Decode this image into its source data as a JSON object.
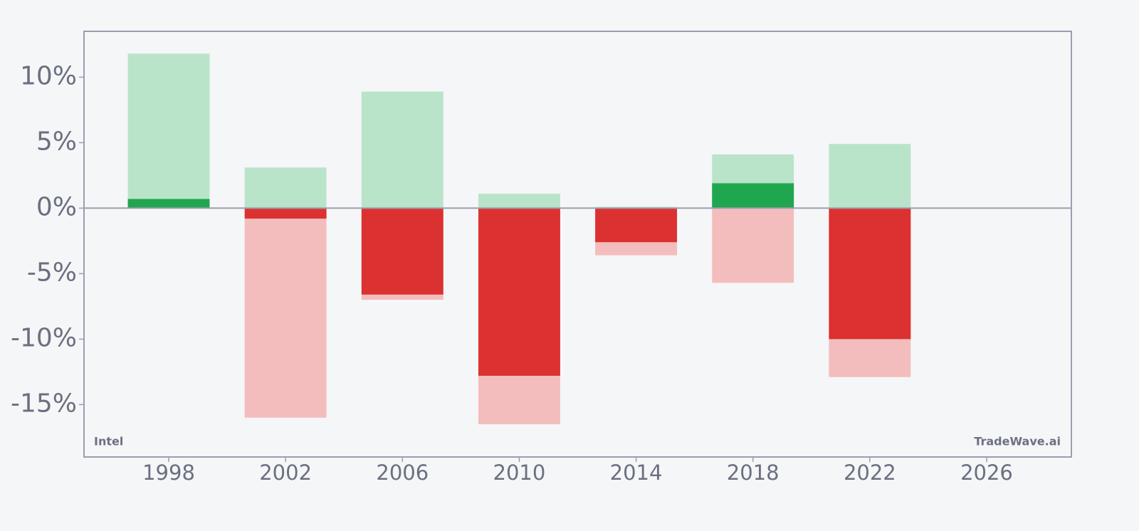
{
  "chart_data": {
    "type": "bar",
    "x": [
      1998,
      2002,
      2006,
      2010,
      2014,
      2018,
      2022
    ],
    "series": [
      {
        "color": "#b9e4c9",
        "values": [
          11.8,
          3.1,
          8.9,
          1.1,
          0.1,
          4.1,
          4.9
        ]
      },
      {
        "color": "#f4bdbd",
        "values": [
          0,
          -16.0,
          -7.0,
          -16.5,
          -3.6,
          -5.7,
          -12.9
        ]
      },
      {
        "color": "#21a650",
        "negative_color": "#dc3131",
        "values": [
          0.7,
          -0.8,
          -6.6,
          -12.8,
          -2.6,
          1.9,
          -10.0
        ]
      }
    ],
    "xlim": [
      1995.1,
      2028.9
    ],
    "xticks": [
      1998,
      2002,
      2006,
      2010,
      2014,
      2018,
      2022,
      2026
    ],
    "ylim": [
      -19,
      13.5
    ],
    "yticks": [
      {
        "value": 10,
        "label": "10%"
      },
      {
        "value": 5,
        "label": "5%"
      },
      {
        "value": 0,
        "label": "0%"
      },
      {
        "value": -5,
        "label": "-5%"
      },
      {
        "value": -10,
        "label": "-10%"
      },
      {
        "value": -15,
        "label": "-15%"
      }
    ],
    "annotations": [
      "Intel",
      "TradeWave.ai"
    ]
  }
}
